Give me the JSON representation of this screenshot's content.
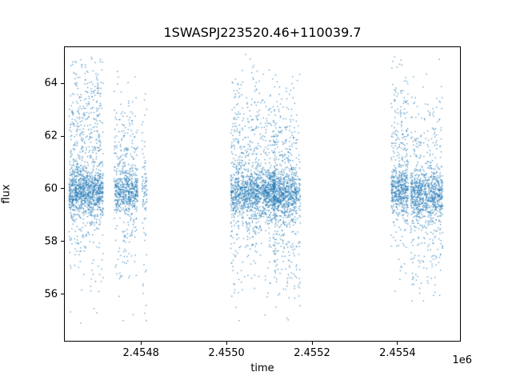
{
  "window": {
    "background": "#ffffff"
  },
  "chart_data": {
    "type": "scatter",
    "title": "1SWASPJ223520.46+110039.7",
    "xlabel": "time",
    "ylabel": "flux",
    "x_offset_label": "1e6",
    "xlim": [
      2454620,
      2455548
    ],
    "ylim": [
      54.2,
      65.4
    ],
    "grid": false,
    "legend": "none",
    "marker_color": "#1f77b4",
    "marker_size_px": 1.3,
    "marker_alpha": 0.8,
    "xticks": {
      "values": [
        2454800,
        2455000,
        2455200,
        2455400
      ],
      "labels": [
        "2.4548",
        "2.4550",
        "2.4552",
        "2.4554"
      ]
    },
    "yticks": {
      "values": [
        56,
        58,
        60,
        62,
        64
      ],
      "labels": [
        "56",
        "58",
        "60",
        "62",
        "64"
      ]
    },
    "description": "Light curve: flux vs time (JD), points grouped in observing-season clusters with a dense band near flux 60 and vertical scatter tails from ~55 to ~65",
    "clusters": [
      {
        "x_center": 2454672,
        "x_width": 80,
        "n": 1400,
        "core_frac": 0.5,
        "core_mean": 59.9,
        "core_sd": 0.45,
        "tail_mean": 61.0,
        "tail_sd": 2.2
      },
      {
        "x_center": 2454765,
        "x_width": 55,
        "n": 700,
        "core_frac": 0.6,
        "core_mean": 59.9,
        "core_sd": 0.4,
        "tail_mean": 60.3,
        "tail_sd": 1.8
      },
      {
        "x_center": 2454808,
        "x_width": 12,
        "n": 90,
        "core_frac": 0.4,
        "core_mean": 59.9,
        "core_sd": 0.45,
        "tail_mean": 60.0,
        "tail_sd": 2.0
      },
      {
        "x_center": 2455040,
        "x_width": 60,
        "n": 900,
        "core_frac": 0.55,
        "core_mean": 59.8,
        "core_sd": 0.45,
        "tail_mean": 60.2,
        "tail_sd": 2.1
      },
      {
        "x_center": 2455092,
        "x_width": 45,
        "n": 700,
        "core_frac": 0.6,
        "core_mean": 59.9,
        "core_sd": 0.4,
        "tail_mean": 60.5,
        "tail_sd": 2.0
      },
      {
        "x_center": 2455137,
        "x_width": 55,
        "n": 900,
        "core_frac": 0.55,
        "core_mean": 59.8,
        "core_sd": 0.45,
        "tail_mean": 60.0,
        "tail_sd": 2.0
      },
      {
        "x_center": 2455168,
        "x_width": 10,
        "n": 80,
        "core_frac": 0.4,
        "core_mean": 59.8,
        "core_sd": 0.5,
        "tail_mean": 59.5,
        "tail_sd": 2.2
      },
      {
        "x_center": 2455405,
        "x_width": 40,
        "n": 600,
        "core_frac": 0.55,
        "core_mean": 59.9,
        "core_sd": 0.4,
        "tail_mean": 61.0,
        "tail_sd": 1.9
      },
      {
        "x_center": 2455468,
        "x_width": 75,
        "n": 1000,
        "core_frac": 0.6,
        "core_mean": 59.8,
        "core_sd": 0.45,
        "tail_mean": 59.8,
        "tail_sd": 2.0
      }
    ],
    "flux_clip": [
      54.85,
      65.1
    ]
  }
}
